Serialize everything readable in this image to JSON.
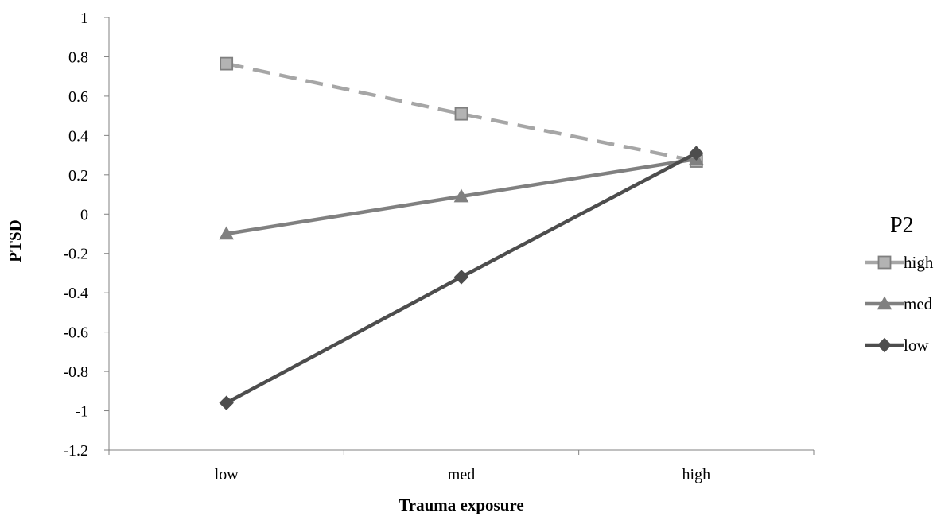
{
  "chart_data": {
    "type": "line",
    "title": "",
    "xlabel": "Trauma exposure",
    "ylabel": "PTSD",
    "categories": [
      "low",
      "med",
      "high"
    ],
    "ylim": [
      -1.2,
      1
    ],
    "yticks": [
      "1",
      "0.8",
      "0.6",
      "0.4",
      "0.2",
      "0",
      "-0.2",
      "-0.4",
      "-0.6",
      "-0.8",
      "-1",
      "-1.2"
    ],
    "grid": false,
    "legend": {
      "title": "P2",
      "placement": "right"
    },
    "series": [
      {
        "name": "high",
        "values": [
          0.765,
          0.51,
          0.27
        ],
        "color": "#a6a6a6",
        "marker": "square",
        "line_style": "dashed",
        "marker_fill": "#b3b3b3"
      },
      {
        "name": "med",
        "values": [
          -0.1,
          0.09,
          0.28
        ],
        "color": "#808080",
        "marker": "triangle",
        "line_style": "solid",
        "marker_fill": "#808080"
      },
      {
        "name": "low",
        "values": [
          -0.96,
          -0.32,
          0.31
        ],
        "color": "#4d4d4d",
        "marker": "diamond",
        "line_style": "solid",
        "marker_fill": "#4d4d4d"
      }
    ],
    "axis_color": "#808080"
  }
}
